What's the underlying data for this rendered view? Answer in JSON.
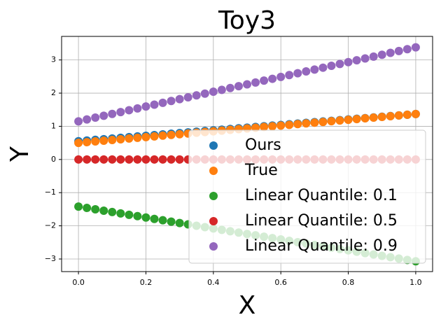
{
  "chart_data": {
    "type": "scatter",
    "title": "Toy3",
    "x_label": "X",
    "y_label": "Y",
    "x": [
      0,
      0.025,
      0.05,
      0.075,
      0.1,
      0.125,
      0.15,
      0.175,
      0.2,
      0.225,
      0.25,
      0.275,
      0.3,
      0.325,
      0.35,
      0.375,
      0.4,
      0.425,
      0.45,
      0.475,
      0.5,
      0.525,
      0.55,
      0.575,
      0.6,
      0.625,
      0.65,
      0.675,
      0.7,
      0.725,
      0.75,
      0.775,
      0.8,
      0.825,
      0.85,
      0.875,
      0.9,
      0.925,
      0.95,
      0.975,
      1
    ],
    "series": [
      {
        "name": "Ours",
        "color": "#1f77b4",
        "values": [
          0.55,
          0.571,
          0.591,
          0.612,
          0.632,
          0.653,
          0.673,
          0.694,
          0.714,
          0.735,
          0.755,
          0.776,
          0.796,
          0.817,
          0.837,
          0.858,
          0.878,
          0.899,
          0.919,
          0.94,
          0.96,
          0.981,
          1.001,
          1.022,
          1.042,
          1.063,
          1.083,
          1.104,
          1.124,
          1.145,
          1.165,
          1.186,
          1.206,
          1.227,
          1.247,
          1.268,
          1.288,
          1.309,
          1.329,
          1.35,
          1.37
        ]
      },
      {
        "name": "True",
        "color": "#ff7f0e",
        "values": [
          0.5,
          0.522,
          0.544,
          0.565,
          0.587,
          0.609,
          0.631,
          0.652,
          0.674,
          0.696,
          0.718,
          0.739,
          0.761,
          0.783,
          0.805,
          0.826,
          0.848,
          0.87,
          0.892,
          0.913,
          0.935,
          0.957,
          0.979,
          1.0,
          1.022,
          1.044,
          1.066,
          1.087,
          1.109,
          1.131,
          1.153,
          1.174,
          1.196,
          1.218,
          1.24,
          1.261,
          1.283,
          1.305,
          1.327,
          1.348,
          1.37
        ]
      },
      {
        "name": "Linear Quantile: 0.1",
        "color": "#2ca02c",
        "values": [
          -1.42,
          -1.461,
          -1.503,
          -1.544,
          -1.585,
          -1.626,
          -1.668,
          -1.709,
          -1.75,
          -1.791,
          -1.833,
          -1.874,
          -1.915,
          -1.956,
          -1.998,
          -2.039,
          -2.08,
          -2.121,
          -2.163,
          -2.204,
          -2.245,
          -2.286,
          -2.328,
          -2.369,
          -2.41,
          -2.451,
          -2.493,
          -2.534,
          -2.575,
          -2.616,
          -2.658,
          -2.699,
          -2.74,
          -2.781,
          -2.823,
          -2.864,
          -2.905,
          -2.946,
          -2.988,
          -3.029,
          -3.07
        ]
      },
      {
        "name": "Linear Quantile: 0.5",
        "color": "#d62728",
        "values": [
          0,
          0,
          0,
          0,
          0,
          0,
          0,
          0,
          0,
          0,
          0,
          0,
          0,
          0,
          0,
          0,
          0,
          0,
          0,
          0,
          0,
          0,
          0,
          0,
          0,
          0,
          0,
          0,
          0,
          0,
          0,
          0,
          0,
          0,
          0,
          0,
          0,
          0,
          0,
          0,
          0
        ]
      },
      {
        "name": "Linear Quantile: 0.9",
        "color": "#9467bd",
        "values": [
          1.15,
          1.206,
          1.262,
          1.317,
          1.373,
          1.429,
          1.485,
          1.54,
          1.596,
          1.652,
          1.708,
          1.763,
          1.819,
          1.875,
          1.931,
          1.986,
          2.042,
          2.098,
          2.154,
          2.209,
          2.265,
          2.321,
          2.377,
          2.432,
          2.488,
          2.544,
          2.6,
          2.655,
          2.711,
          2.767,
          2.823,
          2.878,
          2.934,
          2.99,
          3.046,
          3.101,
          3.157,
          3.213,
          3.269,
          3.324,
          3.38
        ]
      }
    ],
    "xlim": [
      -0.05,
      1.05
    ],
    "ylim": [
      -3.38,
      3.71
    ],
    "xticks": [
      {
        "value": 0,
        "label": "0.0"
      },
      0.2,
      0.4,
      0.6,
      0.8,
      {
        "value": 1,
        "label": "1.0"
      }
    ],
    "yticks": [
      {
        "value": -3,
        "label": "−3"
      },
      {
        "value": -2,
        "label": "−2"
      },
      {
        "value": -1,
        "label": "−1"
      },
      0,
      1,
      2,
      3
    ],
    "grid": true,
    "legend_loc": "lower right"
  }
}
